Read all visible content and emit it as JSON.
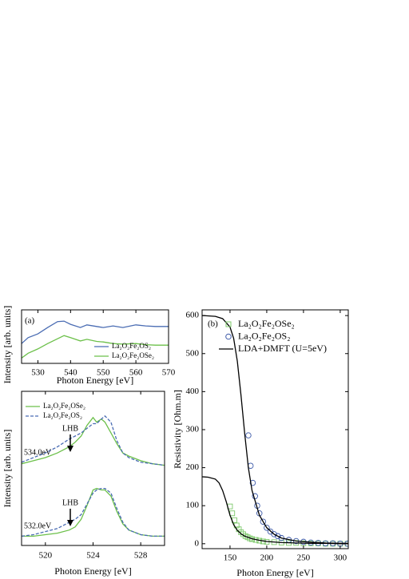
{
  "chart_data": [
    {
      "type": "line",
      "panel_label": "(a)",
      "x_label": "Photon Energy [eV]",
      "y_label": "Intensity [arb. units]",
      "x": [
        525,
        527,
        530,
        533,
        536,
        538,
        540,
        543,
        545,
        548,
        550,
        553,
        556,
        560,
        563,
        566,
        570
      ],
      "series": [
        {
          "name": "La₂O₂Fe₂OS₂",
          "color": "#4a6cb3",
          "values": [
            3.7,
            4.8,
            5.5,
            6.7,
            7.8,
            7.9,
            7.3,
            6.7,
            7.2,
            6.9,
            6.7,
            7.0,
            6.7,
            7.2,
            7.0,
            6.9,
            6.9
          ]
        },
        {
          "name": "La₂O₂Fe₂OSe₂",
          "color": "#6cc04a",
          "values": [
            1.0,
            1.9,
            2.7,
            3.7,
            4.6,
            5.2,
            4.8,
            4.2,
            4.5,
            4.1,
            4.0,
            3.7,
            3.6,
            3.7,
            3.5,
            3.4,
            3.4
          ]
        }
      ],
      "xlim": [
        525,
        570
      ],
      "xticks": [
        530,
        540,
        550,
        560,
        570
      ],
      "ylim": [
        0,
        10
      ],
      "legend": "lower right"
    },
    {
      "type": "line",
      "x_label": "Photon Energy [eV]",
      "y_label": "Intensity [arb. units]",
      "x": [
        518,
        519,
        520,
        521,
        522,
        522.5,
        523,
        523.5,
        524,
        524.3,
        524.7,
        525,
        525.5,
        526,
        526.5,
        527,
        528,
        529,
        530
      ],
      "series": [
        {
          "name": "La₂O₂Fe₂OSe₂",
          "color": "#6cc04a",
          "style": "solid",
          "values": [
            5.3,
            5.5,
            5.7,
            6.0,
            6.4,
            6.7,
            7.1,
            7.8,
            8.3,
            8.0,
            8.2,
            8.0,
            7.3,
            6.6,
            6.0,
            5.8,
            5.5,
            5.3,
            5.2
          ]
        },
        {
          "name": "La₂O₂Fe₂OS₂",
          "color": "#4a6cb3",
          "style": "dashed",
          "values": [
            5.4,
            5.7,
            6.0,
            6.4,
            6.9,
            7.1,
            7.3,
            7.6,
            7.9,
            7.9,
            8.2,
            8.4,
            8.0,
            6.8,
            6.0,
            5.7,
            5.4,
            5.3,
            5.2
          ]
        },
        {
          "color": "#6cc04a",
          "style": "solid",
          "values": [
            0.6,
            0.6,
            0.7,
            0.8,
            1.0,
            1.2,
            1.7,
            2.6,
            3.6,
            3.7,
            3.6,
            3.6,
            3.2,
            2.2,
            1.4,
            1.0,
            0.7,
            0.6,
            0.6
          ]
        },
        {
          "color": "#4a6cb3",
          "style": "dashed",
          "values": [
            0.6,
            0.7,
            0.9,
            1.1,
            1.5,
            1.7,
            2.0,
            2.7,
            3.4,
            3.6,
            3.7,
            3.7,
            3.4,
            2.4,
            1.5,
            1.0,
            0.7,
            0.6,
            0.6
          ]
        }
      ],
      "annotations": [
        "534.0eV",
        "532.0eV",
        "LHB",
        "LHB"
      ],
      "xlim": [
        518,
        530
      ],
      "xticks": [
        520,
        524,
        528
      ],
      "ylim": [
        0,
        10
      ],
      "legend": "upper left"
    },
    {
      "type": "line",
      "panel_label": "(b)",
      "x_label": "Photon Energy [eV]",
      "y_label": "Resistivity [Ohm.m]",
      "series": [
        {
          "name": "La₂O₂Fe₂OSe₂",
          "color": "#7cc86a",
          "marker": "square",
          "x": [
            150,
            153,
            156,
            159,
            162,
            165,
            168,
            171,
            174,
            177,
            180,
            185,
            190,
            195,
            200,
            210,
            220,
            230,
            240,
            250,
            260,
            270,
            280,
            290,
            300,
            310
          ],
          "values": [
            98,
            80,
            62,
            48,
            38,
            30,
            25,
            20,
            17,
            14,
            12,
            10,
            8,
            6,
            5,
            4,
            3,
            2,
            2,
            1,
            1,
            1,
            0,
            0,
            0,
            0
          ]
        },
        {
          "name": "La₂O₂Fe₂OS₂",
          "color": "#3d5aa8",
          "marker": "circle",
          "x": [
            175,
            178,
            181,
            184,
            187,
            190,
            195,
            200,
            205,
            210,
            215,
            220,
            230,
            240,
            250,
            260,
            270,
            280,
            290,
            300,
            310
          ],
          "values": [
            285,
            205,
            160,
            125,
            100,
            80,
            58,
            42,
            32,
            25,
            20,
            15,
            10,
            7,
            5,
            3,
            2,
            1,
            1,
            0,
            0
          ]
        },
        {
          "name": "LDA+DMFT (U=5eV)",
          "color": "#000000",
          "x": [
            112,
            130,
            140,
            150,
            155,
            160,
            165,
            170,
            175,
            180,
            190,
            200,
            210,
            220,
            240,
            260,
            280,
            300,
            311,
            null,
            112,
            120,
            130,
            135,
            140,
            145,
            150,
            155,
            160,
            165,
            170,
            180,
            190,
            200,
            220,
            240,
            260,
            280,
            300,
            311
          ],
          "values": [
            600,
            598,
            592,
            570,
            540,
            480,
            390,
            290,
            200,
            140,
            75,
            42,
            25,
            15,
            7,
            4,
            2,
            1,
            1,
            null,
            176,
            175,
            170,
            160,
            140,
            110,
            75,
            50,
            35,
            26,
            20,
            13,
            9,
            6,
            3,
            2,
            1,
            1,
            0,
            0
          ]
        }
      ],
      "xlim": [
        112,
        311
      ],
      "xticks": [
        150,
        200,
        250,
        300
      ],
      "ylim": [
        -13,
        615
      ],
      "yticks": [
        0,
        100,
        200,
        300,
        400,
        500,
        600
      ],
      "legend": "upper left"
    }
  ]
}
